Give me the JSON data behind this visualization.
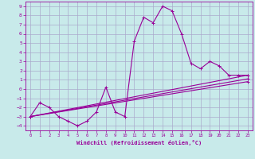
{
  "title": "",
  "xlabel": "Windchill (Refroidissement éolien,°C)",
  "ylabel": "",
  "bg_color": "#c8eaea",
  "line_color": "#990099",
  "grid_color": "#aaaacc",
  "xlim": [
    -0.5,
    23.5
  ],
  "ylim": [
    -4.5,
    9.5
  ],
  "xticks": [
    0,
    1,
    2,
    3,
    4,
    5,
    6,
    7,
    8,
    9,
    10,
    11,
    12,
    13,
    14,
    15,
    16,
    17,
    18,
    19,
    20,
    21,
    22,
    23
  ],
  "yticks": [
    -4,
    -3,
    -2,
    -1,
    0,
    1,
    2,
    3,
    4,
    5,
    6,
    7,
    8,
    9
  ],
  "lines": [
    {
      "x": [
        0,
        1,
        2,
        3,
        4,
        5,
        6,
        7,
        8,
        9,
        10,
        11,
        12,
        13,
        14,
        15,
        16,
        17,
        18,
        19,
        20,
        21,
        22,
        23
      ],
      "y": [
        -3,
        -1.5,
        -2,
        -3,
        -3.5,
        -4,
        -3.5,
        -2.5,
        0.2,
        -2.5,
        -3,
        5.2,
        7.8,
        7.2,
        9,
        8.5,
        6,
        2.8,
        2.2,
        3,
        2.5,
        1.5,
        1.5,
        1.5
      ]
    },
    {
      "x": [
        0,
        23
      ],
      "y": [
        -3,
        1.5
      ]
    },
    {
      "x": [
        0,
        23
      ],
      "y": [
        -3,
        0.8
      ]
    },
    {
      "x": [
        0,
        23
      ],
      "y": [
        -3,
        1.1
      ]
    }
  ]
}
